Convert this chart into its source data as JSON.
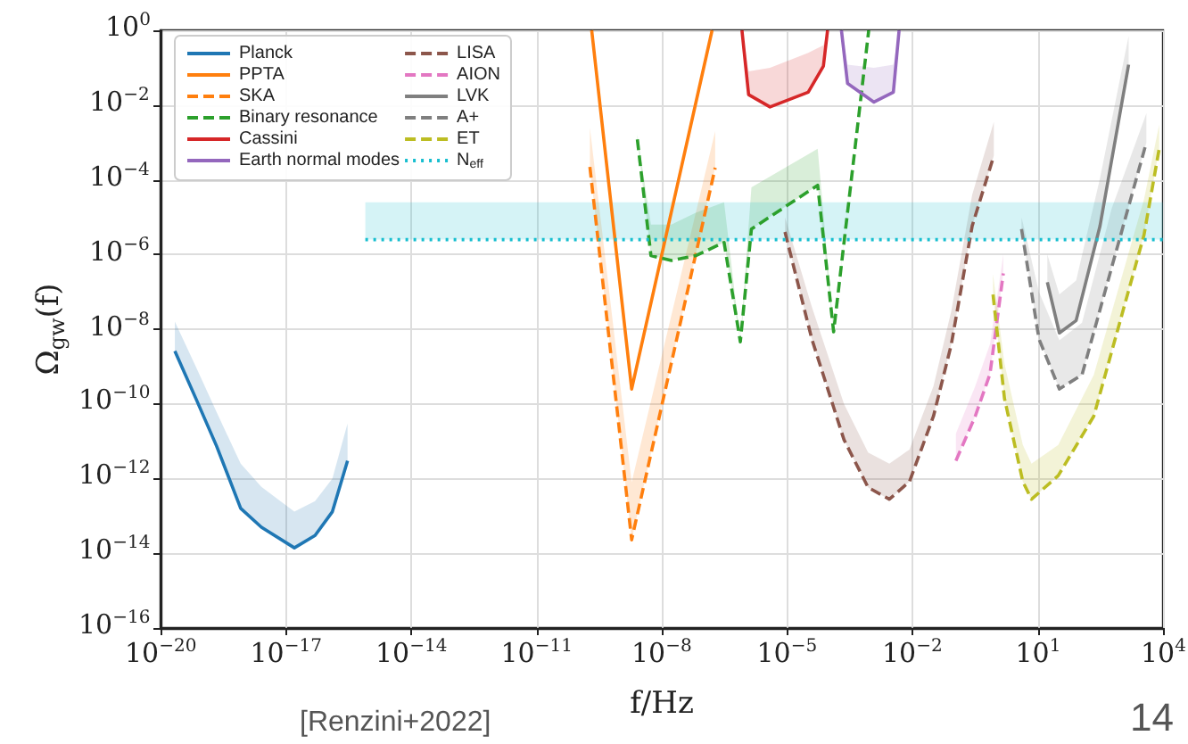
{
  "chart_data": {
    "type": "line",
    "xlabel": "f/Hz",
    "ylabel": "Ω$_{gw}$(f)",
    "annotations": [
      "[Renzini+2022]",
      "14"
    ],
    "log": "xy",
    "grid": true,
    "legend": "top left",
    "marker": "none",
    "xlim": [
      1e-20,
      10000.0
    ],
    "xticks": [
      {
        "value": 1e-20,
        "label": "10$^{−20}$"
      },
      {
        "value": 1e-17,
        "label": "10$^{−17}$"
      },
      {
        "value": 1e-14,
        "label": "10$^{−14}$"
      },
      {
        "value": 1e-11,
        "label": "10$^{−11}$"
      },
      {
        "value": 1e-08,
        "label": "10$^{−8}$"
      },
      {
        "value": 1e-05,
        "label": "10$^{−5}$"
      },
      {
        "value": 0.01,
        "label": "10$^{−2}$"
      },
      {
        "value": 10,
        "label": "10$^{1}$"
      },
      {
        "value": 10000.0,
        "label": "10$^{4}$"
      }
    ],
    "ylim": [
      1e-16,
      1
    ],
    "yticks": [
      {
        "value": 1e-16,
        "label": "10$^{−16}$"
      },
      {
        "value": 1e-14,
        "label": "10$^{−14}$"
      },
      {
        "value": 1e-12,
        "label": "10$^{−12}$"
      },
      {
        "value": 1e-10,
        "label": "10$^{−10}$"
      },
      {
        "value": 1e-08,
        "label": "10$^{−8}$"
      },
      {
        "value": 1e-06,
        "label": "10$^{−6}$"
      },
      {
        "value": 0.0001,
        "label": "10$^{−4}$"
      },
      {
        "value": 0.01,
        "label": "10$^{−2}$"
      },
      {
        "value": 1,
        "label": "10$^{0}$"
      }
    ],
    "series": [
      {
        "name": "Planck",
        "color": "#1f77b4",
        "line_style": "solid",
        "x": [
          2.2e-20,
          7e-20,
          2.2e-19,
          8.3e-19,
          2.6e-18,
          1.6e-17,
          5e-17,
          1.3e-16,
          3e-16
        ],
        "values": [
          2.6e-09,
          1.4e-10,
          7.4e-12,
          1.6e-13,
          5e-14,
          1.4e-14,
          3e-14,
          1.3e-13,
          3e-12
        ],
        "lower": [
          2.6e-09,
          1.4e-10,
          7.4e-12,
          1.6e-13,
          5e-14,
          1.4e-14,
          3e-14,
          1.3e-13,
          3e-12
        ],
        "upper": [
          1.6e-08,
          1e-09,
          6e-11,
          2.5e-12,
          6e-13,
          1.3e-13,
          2.5e-13,
          1e-12,
          3e-11
        ]
      },
      {
        "name": "PPTA",
        "color": "#ff7f0e",
        "line_style": "solid",
        "x": [
          2.1e-10,
          1.9e-09,
          1.6e-07
        ],
        "values": [
          1,
          2.5e-10,
          1
        ]
      },
      {
        "name": "SKA",
        "color": "#ff7f0e",
        "line_style": "dashed",
        "x": [
          1.9e-10,
          1.9e-09,
          1.9e-07
        ],
        "values": [
          0.00022,
          2.3e-14,
          0.00021
        ],
        "lower": [
          0.00022,
          2.3e-14,
          0.00021
        ],
        "upper": [
          0.0025,
          8e-13,
          0.002
        ]
      },
      {
        "name": "Binary resonance",
        "color": "#2ca02c",
        "line_style": "dashed",
        "x": [
          2.6e-09,
          5.5e-09,
          1.7e-08,
          6.5e-08,
          3.1e-07,
          7.6e-07,
          1.4e-06,
          5.4e-05,
          0.00013,
          0.0009
        ],
        "values": [
          0.0012,
          9.3e-07,
          6.9e-07,
          9.3e-07,
          2.1e-06,
          4.6e-09,
          4.8e-06,
          7.1e-05,
          8.5e-09,
          1
        ],
        "lower": [
          0.0012,
          9.3e-07,
          6.9e-07,
          9.3e-07,
          2.1e-06,
          4.6e-09,
          4.8e-06,
          7.1e-05,
          8.5e-09,
          1
        ],
        "upper": [
          0.0016,
          6.3e-06,
          6.3e-06,
          1.3e-05,
          2.5e-05,
          5e-09,
          6.3e-05,
          0.00068,
          1e-08,
          1
        ]
      },
      {
        "name": "Cassini",
        "color": "#d62728",
        "line_style": "solid",
        "x": [
          8.3e-07,
          1.2e-06,
          3.9e-06,
          3.2e-05,
          7.4e-05,
          9.3e-05
        ],
        "values": [
          1,
          0.019,
          0.0089,
          0.022,
          0.11,
          1
        ],
        "lower": [
          1,
          0.019,
          0.0089,
          0.022,
          0.11,
          1
        ],
        "upper": [
          1,
          0.08,
          0.1,
          0.25,
          0.4,
          1
        ]
      },
      {
        "name": "Earth normal modes",
        "color": "#9467bd",
        "line_style": "solid",
        "x": [
          0.0002,
          0.00028,
          0.0012,
          0.0035,
          0.0048
        ],
        "values": [
          1,
          0.038,
          0.012,
          0.022,
          1
        ],
        "lower": [
          1,
          0.038,
          0.012,
          0.022,
          1
        ],
        "upper": [
          1,
          0.12,
          0.1,
          0.12,
          1
        ]
      },
      {
        "name": "LISA",
        "color": "#8c564b",
        "line_style": "dashed",
        "x": [
          8.9e-06,
          3.9e-05,
          0.00023,
          0.00087,
          0.0028,
          0.0085,
          0.032,
          0.085,
          0.27,
          0.89
        ],
        "values": [
          4e-06,
          5.5e-09,
          1.1e-11,
          5.8e-13,
          2.8e-13,
          8.3e-13,
          4.7e-11,
          3.8e-09,
          5.8e-06,
          0.00044
        ],
        "lower": [
          4e-06,
          5.5e-09,
          1.1e-11,
          5.8e-13,
          2.8e-13,
          8.3e-13,
          4.7e-11,
          3.8e-09,
          5.8e-06,
          0.00044
        ],
        "upper": [
          1e-05,
          4e-08,
          1e-10,
          5e-12,
          2.5e-12,
          6e-12,
          3e-10,
          3e-08,
          4e-05,
          0.0035
        ]
      },
      {
        "name": "AION",
        "color": "#e377c2",
        "line_style": "dashed",
        "x": [
          0.11,
          0.32,
          0.72,
          1.5
        ],
        "values": [
          3e-12,
          4.7e-11,
          6.3e-10,
          3.1e-07
        ],
        "lower": [
          3e-12,
          4.7e-11,
          6.3e-10,
          3.1e-07
        ],
        "upper": [
          1.6e-11,
          3e-10,
          4e-09,
          1e-06
        ]
      },
      {
        "name": "LVK",
        "color": "#7f7f7f",
        "line_style": "solid",
        "x": [
          17,
          33,
          83,
          310,
          1500
        ],
        "values": [
          1.8e-07,
          7.9e-09,
          1.7e-08,
          5.8e-06,
          0.12
        ],
        "lower": [
          1.8e-07,
          7.9e-09,
          1.7e-08,
          5.8e-06,
          0.12
        ],
        "upper": [
          1e-06,
          8.5e-08,
          2e-07,
          0.00011,
          0.7
        ]
      },
      {
        "name": "A+",
        "color": "#7f7f7f",
        "line_style": "dashed",
        "x": [
          4.1,
          10.7,
          33,
          115,
          590,
          4000
        ],
        "values": [
          4.8e-06,
          5.5e-09,
          2.5e-10,
          6e-10,
          4.5e-07,
          0.001
        ],
        "lower": [
          4.8e-06,
          5.5e-09,
          2.5e-10,
          6e-10,
          4.5e-07,
          0.001
        ],
        "upper": [
          1e-05,
          1e-07,
          5e-09,
          1.5e-08,
          1.7e-05,
          0.006
        ]
      },
      {
        "name": "ET",
        "color": "#bcbd22",
        "line_style": "dashed",
        "x": [
          0.85,
          1.6,
          4.4,
          7.1,
          31,
          220,
          3500,
          8100
        ],
        "values": [
          8.5e-08,
          1.4e-10,
          8.3e-13,
          2.8e-13,
          1.2e-12,
          4.7e-11,
          3.3e-06,
          0.00068
        ],
        "lower": [
          8.5e-08,
          1.4e-10,
          8.3e-13,
          2.8e-13,
          1.2e-12,
          4.7e-11,
          3.3e-06,
          0.00068
        ],
        "upper": [
          3e-07,
          1.2e-09,
          8e-12,
          2.5e-12,
          8e-12,
          6e-10,
          3e-05,
          0.003
        ]
      },
      {
        "name": "N$_{eff}$",
        "color": "#17becf",
        "line_style": "dotted",
        "x": [
          8e-16,
          10000.0
        ],
        "values": [
          2.5e-06,
          2.5e-06
        ],
        "lower": [
          2.5e-06,
          2.5e-06
        ],
        "upper": [
          2.5e-05,
          2.5e-05
        ]
      }
    ]
  }
}
